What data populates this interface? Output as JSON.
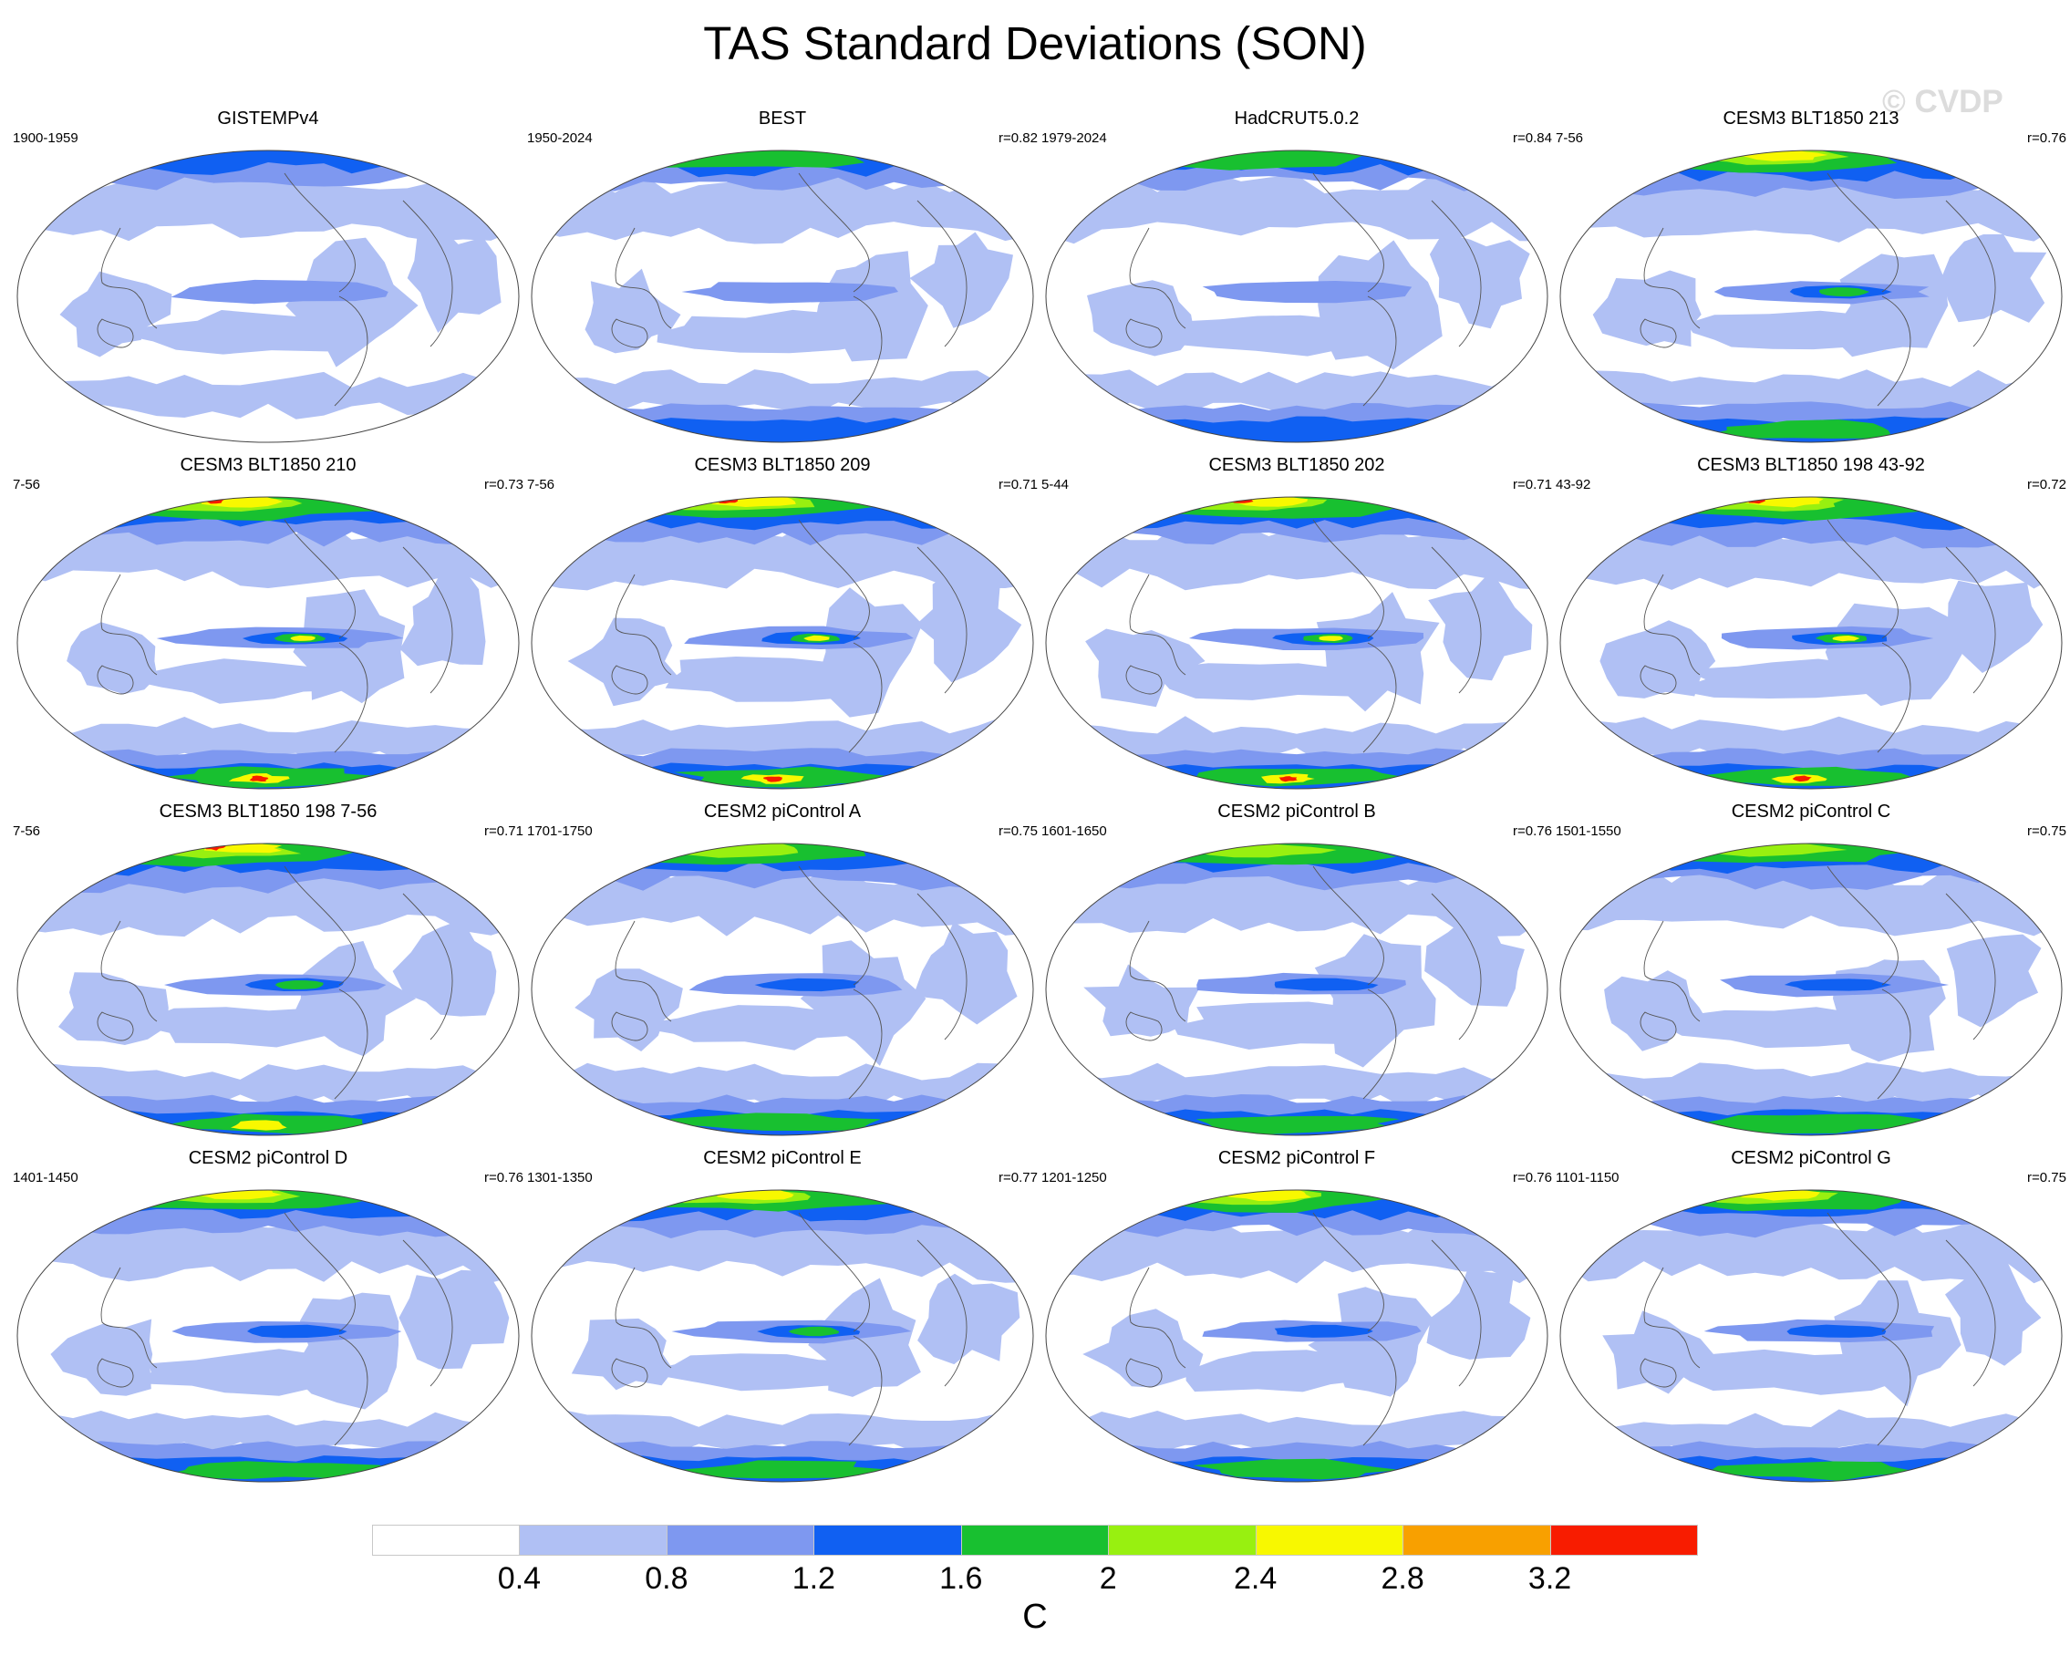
{
  "title": "TAS Standard Deviations (SON)",
  "watermark": "© CVDP",
  "colors": [
    "#ffffff",
    "#b0c0f4",
    "#7e98f0",
    "#1060f2",
    "#18c030",
    "#98f010",
    "#f8f800",
    "#f8a000",
    "#f81c00"
  ],
  "colorbar": {
    "ticks": [
      "0.4",
      "0.8",
      "1.2",
      "1.6",
      "2",
      "2.4",
      "2.8",
      "3.2"
    ],
    "units": "C"
  },
  "panels": [
    {
      "title": "GISTEMPv4",
      "period": "1900-1959",
      "r": "",
      "intensity": 0.0
    },
    {
      "title": "BEST",
      "period": "1950-2024",
      "r": "r=0.82",
      "intensity": 0.3
    },
    {
      "title": "HadCRUT5.0.2",
      "period": "1979-2024",
      "r": "r=0.84",
      "intensity": 0.2
    },
    {
      "title": "CESM3 BLT1850 213",
      "period": "7-56",
      "r": "r=0.76",
      "intensity": 1.0
    },
    {
      "title": "CESM3 BLT1850 210",
      "period": "7-56",
      "r": "r=0.73",
      "intensity": 1.2
    },
    {
      "title": "CESM3 BLT1850 209",
      "period": "7-56",
      "r": "r=0.71",
      "intensity": 1.2
    },
    {
      "title": "CESM3 BLT1850 202",
      "period": "5-44",
      "r": "r=0.71",
      "intensity": 1.2
    },
    {
      "title": "CESM3 BLT1850 198 43-92",
      "period": "43-92",
      "r": "r=0.72",
      "intensity": 1.3
    },
    {
      "title": "CESM3 BLT1850 198 7-56",
      "period": "7-56",
      "r": "r=0.71",
      "intensity": 1.1
    },
    {
      "title": "CESM2 piControl A",
      "period": "1701-1750",
      "r": "r=0.75",
      "intensity": 0.8
    },
    {
      "title": "CESM2 piControl B",
      "period": "1601-1650",
      "r": "r=0.76",
      "intensity": 0.8
    },
    {
      "title": "CESM2 piControl C",
      "period": "1501-1550",
      "r": "r=0.75",
      "intensity": 0.8
    },
    {
      "title": "CESM2 piControl D",
      "period": "1401-1450",
      "r": "r=0.76",
      "intensity": 0.9
    },
    {
      "title": "CESM2 piControl E",
      "period": "1301-1350",
      "r": "r=0.77",
      "intensity": 1.0
    },
    {
      "title": "CESM2 piControl F",
      "period": "1201-1250",
      "r": "r=0.76",
      "intensity": 0.9
    },
    {
      "title": "CESM2 piControl G",
      "period": "1101-1150",
      "r": "r=0.75",
      "intensity": 0.9
    }
  ]
}
